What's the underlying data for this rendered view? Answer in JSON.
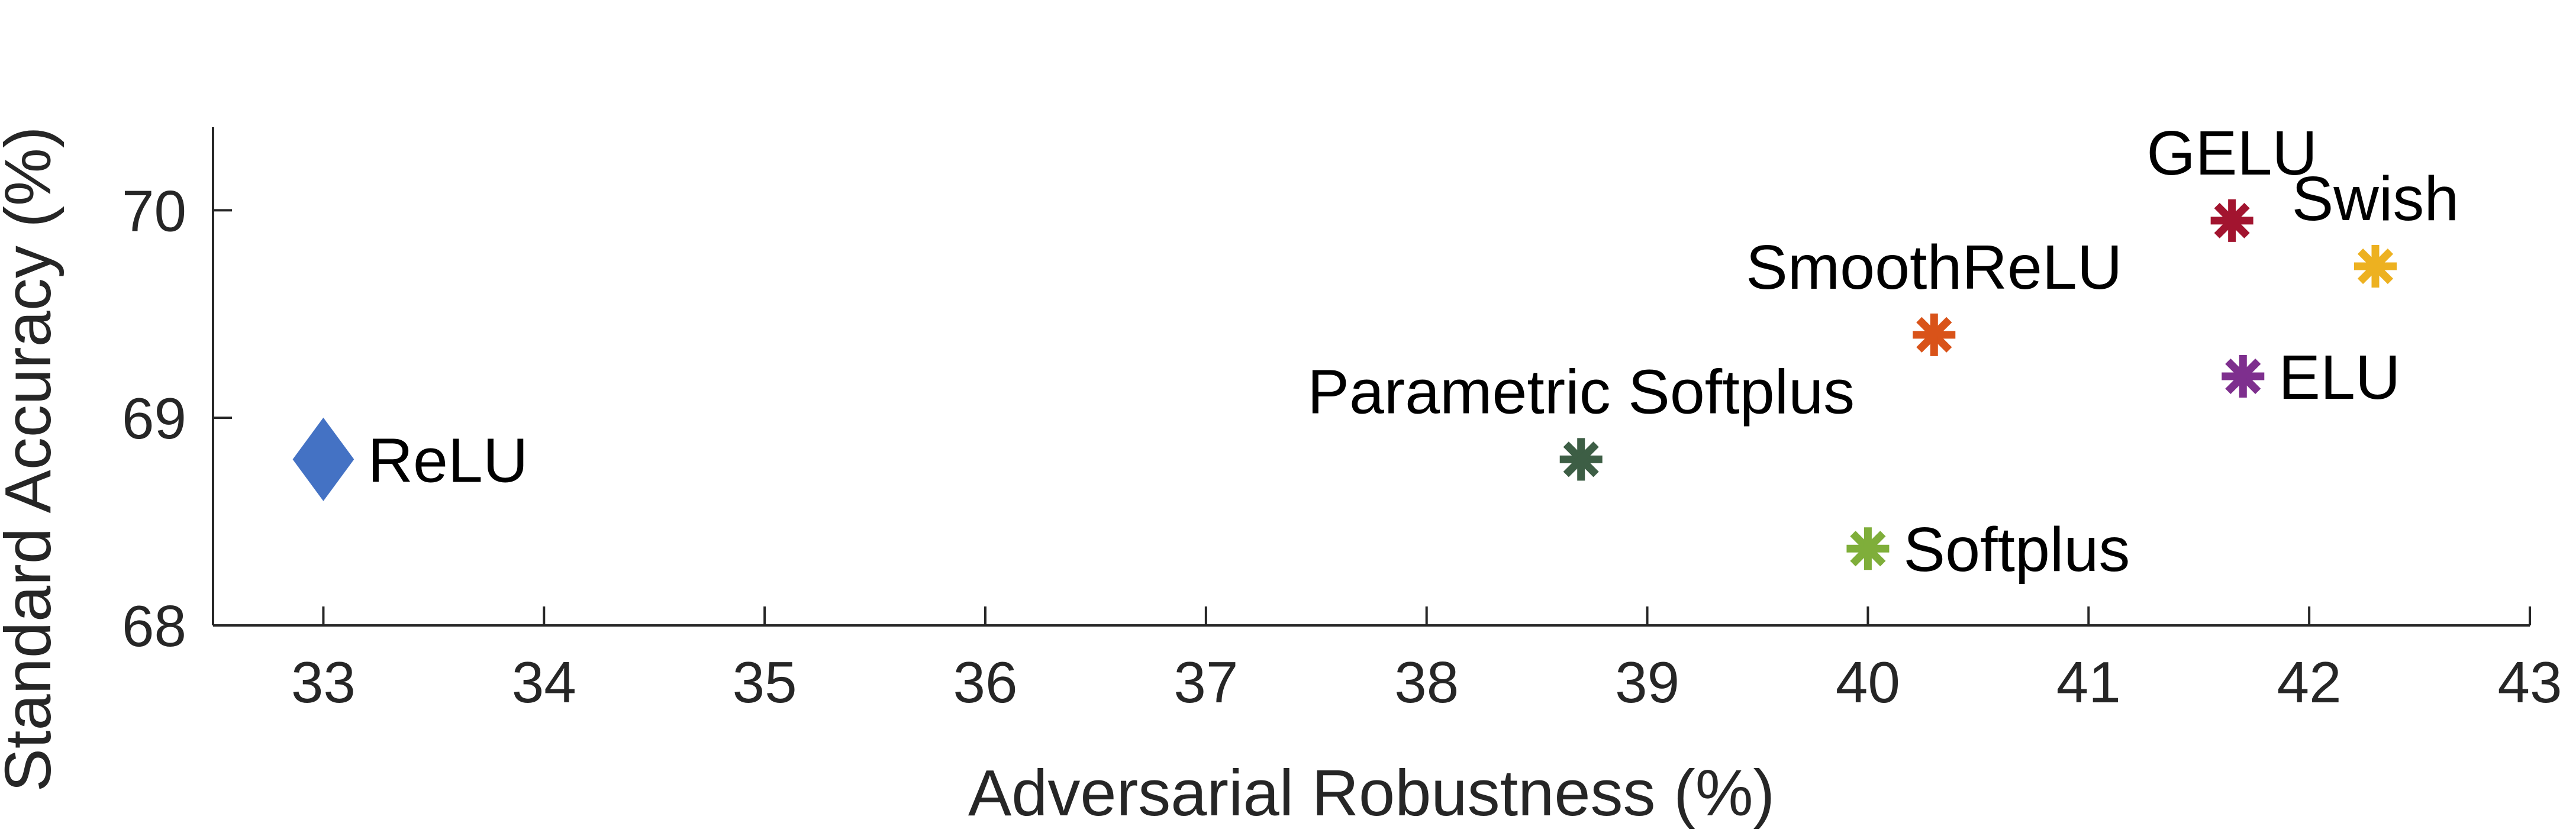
{
  "chart_data": {
    "type": "scatter",
    "xlabel": "Adversarial Robustness (%)",
    "ylabel": "Standard Accuracy (%)",
    "xlim": [
      32.5,
      43
    ],
    "ylim": [
      68,
      70.4
    ],
    "xticks": [
      33,
      34,
      35,
      36,
      37,
      38,
      39,
      40,
      41,
      42,
      43
    ],
    "yticks": [
      68,
      69,
      70
    ],
    "grid": false,
    "points": [
      {
        "name": "ReLU",
        "x": 33.0,
        "y": 68.8,
        "marker": "diamond",
        "color": "#4472C4",
        "label_pos": "right"
      },
      {
        "name": "Parametric Softplus",
        "x": 38.7,
        "y": 68.8,
        "marker": "asterisk",
        "color": "#3D5E45",
        "label_pos": "above"
      },
      {
        "name": "Softplus",
        "x": 40.0,
        "y": 68.37,
        "marker": "asterisk",
        "color": "#7FAE3A",
        "label_pos": "right"
      },
      {
        "name": "SmoothReLU",
        "x": 40.3,
        "y": 69.4,
        "marker": "asterisk",
        "color": "#D95319",
        "label_pos": "above"
      },
      {
        "name": "GELU",
        "x": 41.65,
        "y": 69.95,
        "marker": "asterisk",
        "color": "#A2142F",
        "label_pos": "above"
      },
      {
        "name": "ELU",
        "x": 41.7,
        "y": 69.2,
        "marker": "asterisk",
        "color": "#7E2F8E",
        "label_pos": "right"
      },
      {
        "name": "Swish",
        "x": 42.3,
        "y": 69.73,
        "marker": "asterisk",
        "color": "#EDB120",
        "label_pos": "above"
      }
    ]
  }
}
